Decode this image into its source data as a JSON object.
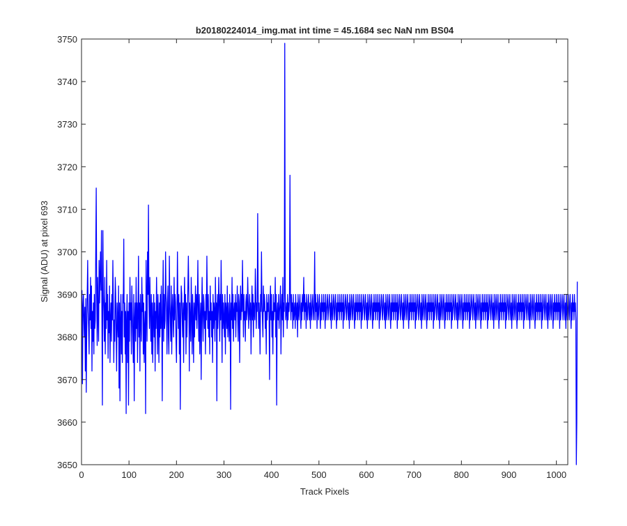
{
  "figure": {
    "background": "#ffffff"
  },
  "chart_data": {
    "type": "line",
    "title": "b20180224014_img.mat int time = 45.1684 sec  NaN nm BS04",
    "xlabel": "Track Pixels",
    "ylabel": "Signal (ADU) at pixel 693",
    "xlim": [
      0,
      1024
    ],
    "ylim": [
      3650,
      3750
    ],
    "xticks": [
      0,
      100,
      200,
      300,
      400,
      500,
      600,
      700,
      800,
      900,
      1000
    ],
    "yticks": [
      3650,
      3660,
      3670,
      3680,
      3690,
      3700,
      3710,
      3720,
      3730,
      3740,
      3750
    ],
    "grid": false,
    "legend": "none",
    "series_color": "#0000ff",
    "series": [
      {
        "x_start": 1,
        "x_step": 1,
        "y": [
          3691,
          3669,
          3687,
          3690,
          3684,
          3680,
          3687,
          3672,
          3689,
          3667,
          3682,
          3690,
          3698,
          3686,
          3682,
          3676,
          3690,
          3684,
          3694,
          3682,
          3692,
          3672,
          3686,
          3679,
          3688,
          3676,
          3690,
          3682,
          3684,
          3700,
          3715,
          3690,
          3678,
          3694,
          3684,
          3679,
          3698,
          3688,
          3694,
          3700,
          3691,
          3705,
          3684,
          3664,
          3705,
          3690,
          3686,
          3679,
          3694,
          3676,
          3688,
          3682,
          3698,
          3684,
          3690,
          3675,
          3686,
          3681,
          3692,
          3674,
          3684,
          3688,
          3679,
          3690,
          3684,
          3698,
          3688,
          3674,
          3684,
          3679,
          3694,
          3690,
          3680,
          3672,
          3688,
          3684,
          3680,
          3692,
          3668,
          3688,
          3665,
          3684,
          3690,
          3676,
          3686,
          3674,
          3690,
          3688,
          3703,
          3680,
          3688,
          3676,
          3686,
          3662,
          3684,
          3690,
          3674,
          3686,
          3664,
          3688,
          3679,
          3694,
          3684,
          3688,
          3676,
          3692,
          3686,
          3680,
          3674,
          3690,
          3665,
          3684,
          3688,
          3679,
          3694,
          3682,
          3688,
          3674,
          3686,
          3699,
          3680,
          3688,
          3672,
          3690,
          3684,
          3679,
          3694,
          3686,
          3690,
          3676,
          3688,
          3674,
          3682,
          3686,
          3662,
          3698,
          3688,
          3679,
          3700,
          3690,
          3711,
          3688,
          3682,
          3694,
          3686,
          3679,
          3690,
          3676,
          3688,
          3674,
          3684,
          3690,
          3680,
          3688,
          3672,
          3686,
          3682,
          3694,
          3686,
          3676,
          3690,
          3684,
          3674,
          3688,
          3680,
          3690,
          3682,
          3692,
          3684,
          3665,
          3688,
          3698,
          3679,
          3690,
          3682,
          3684,
          3700,
          3690,
          3686,
          3676,
          3688,
          3692,
          3680,
          3676,
          3699,
          3688,
          3684,
          3679,
          3692,
          3676,
          3686,
          3690,
          3684,
          3680,
          3694,
          3684,
          3690,
          3688,
          3679,
          3674,
          3686,
          3700,
          3688,
          3682,
          3690,
          3676,
          3688,
          3663,
          3684,
          3692,
          3690,
          3684,
          3680,
          3688,
          3674,
          3686,
          3694,
          3684,
          3690,
          3676,
          3688,
          3680,
          3686,
          3692,
          3699,
          3690,
          3672,
          3688,
          3684,
          3679,
          3694,
          3686,
          3676,
          3690,
          3684,
          3674,
          3688,
          3680,
          3686,
          3692,
          3684,
          3690,
          3682,
          3688,
          3698,
          3686,
          3679,
          3690,
          3676,
          3684,
          3688,
          3670,
          3686,
          3694,
          3684,
          3679,
          3690,
          3688,
          3682,
          3686,
          3676,
          3690,
          3684,
          3699,
          3688,
          3682,
          3690,
          3680,
          3686,
          3676,
          3692,
          3684,
          3688,
          3680,
          3686,
          3674,
          3690,
          3682,
          3688,
          3686,
          3679,
          3694,
          3684,
          3688,
          3665,
          3690,
          3682,
          3686,
          3694,
          3688,
          3679,
          3690,
          3684,
          3698,
          3686,
          3674,
          3690,
          3682,
          3688,
          3684,
          3680,
          3690,
          3676,
          3688,
          3686,
          3682,
          3692,
          3680,
          3688,
          3684,
          3679,
          3690,
          3686,
          3663,
          3688,
          3684,
          3694,
          3682,
          3690,
          3679,
          3686,
          3688,
          3684,
          3690,
          3680,
          3688,
          3686,
          3692,
          3684,
          3679,
          3690,
          3688,
          3674,
          3686,
          3692,
          3684,
          3690,
          3686,
          3698,
          3688,
          3680,
          3690,
          3684,
          3686,
          3679,
          3688,
          3690,
          3684,
          3686,
          3694,
          3688,
          3682,
          3686,
          3690,
          3684,
          3688,
          3676,
          3686,
          3692,
          3684,
          3690,
          3680,
          3688,
          3686,
          3684,
          3696,
          3690,
          3682,
          3688,
          3686,
          3709,
          3690,
          3682,
          3688,
          3684,
          3676,
          3690,
          3686,
          3700,
          3688,
          3684,
          3680,
          3692,
          3686,
          3690,
          3688,
          3682,
          3686,
          3676,
          3690,
          3684,
          3688,
          3686,
          3690,
          3684,
          3670,
          3688,
          3692,
          3684,
          3690,
          3680,
          3686,
          3676,
          3690,
          3684,
          3688,
          3686,
          3694,
          3680,
          3690,
          3664,
          3686,
          3688,
          3684,
          3690,
          3682,
          3686,
          3688,
          3692,
          3676,
          3686,
          3690,
          3684,
          3694,
          3680,
          3688,
          3686,
          3749,
          3690,
          3684,
          3686,
          3688,
          3682,
          3690,
          3684,
          3688,
          3686,
          3690,
          3718,
          3688,
          3684,
          3690,
          3686,
          3688,
          3682,
          3690,
          3684,
          3686,
          3688,
          3682,
          3690,
          3686,
          3684,
          3688,
          3680,
          3690,
          3686,
          3684,
          3688,
          3690,
          3686,
          3682,
          3688,
          3684,
          3690,
          3686,
          3688,
          3694,
          3684,
          3690,
          3686,
          3688,
          3682,
          3690,
          3686,
          3684,
          3688,
          3690,
          3686,
          3684,
          3688,
          3682,
          3690,
          3686,
          3684,
          3688,
          3690,
          3686,
          3684,
          3688,
          3700,
          3684,
          3690,
          3686,
          3688,
          3682,
          3690,
          3686,
          3684,
          3688,
          3690,
          3686,
          3682,
          3688,
          3684,
          3690,
          3686,
          3688,
          3684,
          3690,
          3686,
          3688,
          3682,
          3690,
          3684,
          3686,
          3688,
          3690,
          3684,
          3686,
          3688,
          3690,
          3686,
          3684,
          3688,
          3682,
          3690,
          3686,
          3684,
          3688,
          3690,
          3686,
          3684,
          3688,
          3690,
          3686,
          3682,
          3688,
          3684,
          3690,
          3686,
          3688,
          3684,
          3690,
          3686,
          3688,
          3684,
          3690,
          3686,
          3688,
          3682,
          3690,
          3684,
          3686,
          3688,
          3690,
          3686,
          3684,
          3688,
          3690,
          3686,
          3684,
          3688,
          3682,
          3690,
          3686,
          3684,
          3688,
          3690,
          3686,
          3684,
          3688,
          3690,
          3686,
          3682,
          3688,
          3684,
          3690,
          3686,
          3688,
          3684,
          3690,
          3686,
          3688,
          3684,
          3690,
          3686,
          3688,
          3682,
          3690,
          3684,
          3686,
          3688,
          3690,
          3686,
          3684,
          3688,
          3690,
          3686,
          3684,
          3688,
          3682,
          3690,
          3686,
          3684,
          3688,
          3690,
          3686,
          3684,
          3688,
          3690,
          3686,
          3682,
          3688,
          3684,
          3690,
          3686,
          3688,
          3684,
          3690,
          3686,
          3688,
          3684,
          3690,
          3686,
          3688,
          3682,
          3690,
          3684,
          3686,
          3688,
          3690,
          3686,
          3684,
          3688,
          3690,
          3686,
          3684,
          3688,
          3682,
          3690,
          3686,
          3684,
          3688,
          3690,
          3686,
          3684,
          3688,
          3690,
          3686,
          3682,
          3688,
          3684,
          3690,
          3686,
          3688,
          3684,
          3690,
          3686,
          3688,
          3684,
          3690,
          3686,
          3688,
          3682,
          3690,
          3684,
          3686,
          3688,
          3690,
          3686,
          3684,
          3688,
          3690,
          3686,
          3684,
          3688,
          3682,
          3690,
          3686,
          3684,
          3688,
          3690,
          3686,
          3684,
          3688,
          3690,
          3686,
          3682,
          3688,
          3684,
          3690,
          3686,
          3688,
          3684,
          3690,
          3686,
          3688,
          3684,
          3690,
          3686,
          3688,
          3682,
          3690,
          3684,
          3686,
          3688,
          3690,
          3686,
          3684,
          3688,
          3690,
          3686,
          3684,
          3688,
          3682,
          3690,
          3686,
          3684,
          3688,
          3690,
          3686,
          3684,
          3688,
          3690,
          3686,
          3682,
          3688,
          3684,
          3690,
          3686,
          3688,
          3684,
          3690,
          3686,
          3688,
          3684,
          3690,
          3686,
          3688,
          3682,
          3690,
          3684,
          3686,
          3688,
          3690,
          3686,
          3684,
          3688,
          3690,
          3686,
          3684,
          3688,
          3682,
          3690,
          3686,
          3684,
          3688,
          3690,
          3686,
          3684,
          3688,
          3690,
          3686,
          3682,
          3688,
          3684,
          3690,
          3686,
          3688,
          3684,
          3690,
          3686,
          3688,
          3684,
          3690,
          3686,
          3688,
          3682,
          3690,
          3684,
          3686,
          3688,
          3690,
          3686,
          3684,
          3688,
          3690,
          3686,
          3684,
          3688,
          3682,
          3690,
          3686,
          3684,
          3688,
          3690,
          3686,
          3684,
          3688,
          3690,
          3686,
          3682,
          3688,
          3684,
          3690,
          3686,
          3688,
          3684,
          3690,
          3686,
          3688,
          3684,
          3690,
          3686,
          3688,
          3682,
          3690,
          3684,
          3686,
          3688,
          3690,
          3686,
          3684,
          3688,
          3690,
          3686,
          3684,
          3688,
          3682,
          3690,
          3686,
          3684,
          3688,
          3690,
          3686,
          3684,
          3688,
          3690,
          3686,
          3682,
          3688,
          3684,
          3690,
          3686,
          3688,
          3684,
          3690,
          3686,
          3688,
          3684,
          3690,
          3686,
          3688,
          3682,
          3690,
          3684,
          3686,
          3688,
          3690,
          3686,
          3684,
          3688,
          3690,
          3686,
          3684,
          3688,
          3682,
          3690,
          3686,
          3684,
          3688,
          3690,
          3686,
          3684,
          3688,
          3690,
          3686,
          3682,
          3688,
          3684,
          3690,
          3686,
          3688,
          3684,
          3690,
          3686,
          3688,
          3684,
          3690,
          3686,
          3688,
          3682,
          3690,
          3684,
          3686,
          3688,
          3690,
          3686,
          3684,
          3688,
          3690,
          3686,
          3684,
          3688,
          3682,
          3690,
          3686,
          3684,
          3688,
          3690,
          3686,
          3684,
          3688,
          3690,
          3686,
          3682,
          3688,
          3684,
          3690,
          3686,
          3688,
          3684,
          3690,
          3686,
          3688,
          3684,
          3690,
          3686,
          3688,
          3682,
          3690,
          3684,
          3686,
          3688,
          3690,
          3686,
          3684,
          3688,
          3690,
          3686,
          3684,
          3688,
          3682,
          3690,
          3686,
          3684,
          3688,
          3690,
          3686,
          3684,
          3688,
          3690,
          3686,
          3682,
          3688,
          3684,
          3690,
          3686,
          3688,
          3684,
          3690,
          3686,
          3688,
          3684,
          3690,
          3686,
          3688,
          3682,
          3690,
          3684,
          3686,
          3688,
          3690,
          3686,
          3684,
          3688,
          3690,
          3686,
          3684,
          3688,
          3682,
          3690,
          3686,
          3684,
          3688,
          3690,
          3686,
          3684,
          3688,
          3690,
          3686,
          3682,
          3688,
          3684,
          3690,
          3686,
          3688,
          3684,
          3690,
          3686,
          3688,
          3684,
          3690,
          3686,
          3688,
          3682,
          3690,
          3684,
          3686,
          3688,
          3690,
          3686,
          3684,
          3688,
          3690,
          3686,
          3684,
          3688,
          3682,
          3690,
          3686,
          3684,
          3688,
          3690,
          3686,
          3684,
          3688,
          3690,
          3686,
          3682,
          3688,
          3684,
          3690,
          3686,
          3688,
          3684,
          3690,
          3686,
          3688,
          3684,
          3650,
          3660,
          3693
        ]
      }
    ]
  }
}
